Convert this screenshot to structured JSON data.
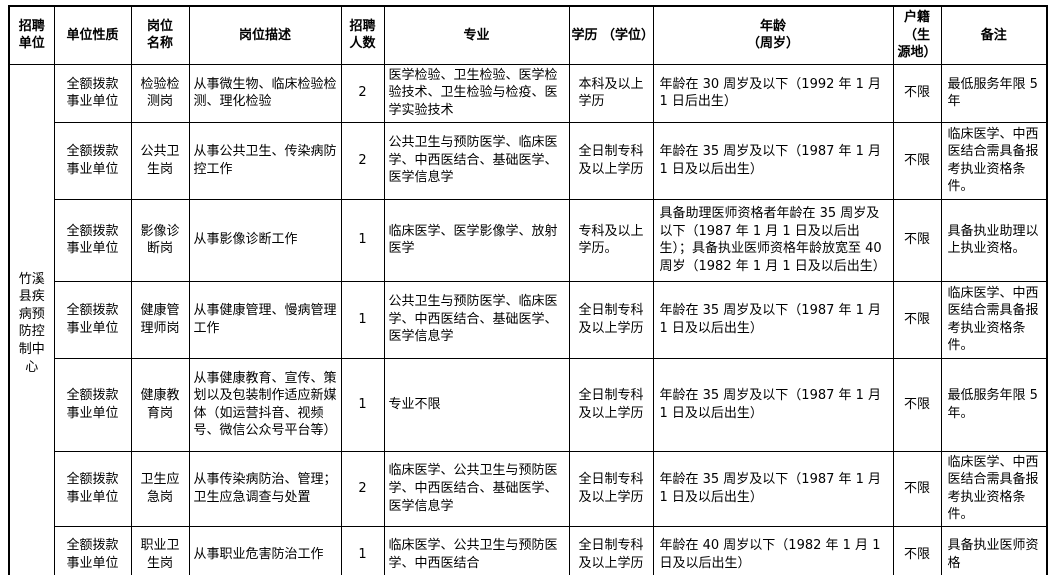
{
  "page": {
    "background": "#ffffff",
    "border_color": "#000000",
    "text_color": "#000000"
  },
  "table": {
    "unit_name": "竹溪县疾病预防控制中心",
    "headers": [
      "招聘\n单位",
      "单位性质",
      "岗位\n名称",
      "岗位描述",
      "招聘\n人数",
      "专业",
      "学历 （学位）",
      "年龄\n（周岁）",
      "户籍\n（生\n源地）",
      "备注"
    ],
    "rows": [
      {
        "unit_type": "全额拨款事业单位",
        "post_name": "检验检测岗",
        "post_desc": "从事微生物、临床检验检测、理化检验",
        "count": "2",
        "major": "医学检验、卫生检验、医学检验技术、卫生检验与检疫、医学实验技术",
        "education": "本科及以上学历",
        "age": "年龄在 30 周岁及以下（1992 年 1 月 1 日后出生）",
        "residence": "不限",
        "remark": "最低服务年限 5 年"
      },
      {
        "unit_type": "全额拨款事业单位",
        "post_name": "公共卫生岗",
        "post_desc": "从事公共卫生、传染病防控工作",
        "count": "2",
        "major": "公共卫生与预防医学、临床医学、中西医结合、基础医学、 医学信息学",
        "education": "全日制专科及以上学历",
        "age": "年龄在 35 周岁及以下（1987 年 1 月 1 日及以后出生）",
        "residence": "不限",
        "remark": "临床医学、中西医结合需具备报考执业资格条件。"
      },
      {
        "unit_type": "全额拨款事业单位",
        "post_name": "影像诊断岗",
        "post_desc": "从事影像诊断工作",
        "count": "1",
        "major": "临床医学、医学影像学、放射医学",
        "education": "专科及以上学历。",
        "age": "具备助理医师资格者年龄在 35 周岁及以下（1987 年 1 月 1 日及以后出生）；具备执业医师资格年龄放宽至 40 周岁（1982 年 1 月 1 日及以后出生）",
        "residence": "不限",
        "remark": "具备执业助理以上执业资格。"
      },
      {
        "unit_type": "全额拨款事业单位",
        "post_name": "健康管理师岗",
        "post_desc": "从事健康管理、慢病管理工作",
        "count": "1",
        "major": "公共卫生与预防医学、临床医学、中西医结合、基础医学、医学信息学",
        "education": "全日制专科及以上学历",
        "age": "年龄在 35 周岁及以下（1987 年 1 月 1 日及以后出生）",
        "residence": "不限",
        "remark": "临床医学、中西医结合需具备报考执业资格条件。"
      },
      {
        "unit_type": "全额拨款事业单位",
        "post_name": "健康教育岗",
        "post_desc": "从事健康教育、宣传、策划以及包装制作适应新媒体（如运营抖音、视频号、微信公众号平台等）",
        "count": "1",
        "major": "专业不限",
        "education": "全日制专科及以上学历",
        "age": "年龄在 35 周岁及以下（1987 年 1 月 1 日及以后出生）",
        "residence": "不限",
        "remark": "最低服务年限 5 年。"
      },
      {
        "unit_type": "全额拨款事业单位",
        "post_name": "卫生应急岗",
        "post_desc": "从事传染病防治、管理；卫生应急调查与处置",
        "count": "2",
        "major": "临床医学、公共卫生与预防医学、中西医结合、基础医学、 医学信息学",
        "education": "全日制专科及以上学历",
        "age": "年龄在 35 周岁及以下（1987 年 1 月 1 日及以后出生）",
        "residence": "不限",
        "remark": "临床医学、中西医结合需具备报考执业资格条件。"
      },
      {
        "unit_type": "全额拨款事业单位",
        "post_name": "职业卫生岗",
        "post_desc": "从事职业危害防治工作",
        "count": "1",
        "major": "临床医学、公共卫生与预防医学、中西医结合",
        "education": "全日制专科及以上学历",
        "age": "年龄在 40 周岁以下（1982 年 1 月 1 日及以后出生）",
        "residence": "不限",
        "remark": "具备执业医师资格"
      }
    ]
  }
}
